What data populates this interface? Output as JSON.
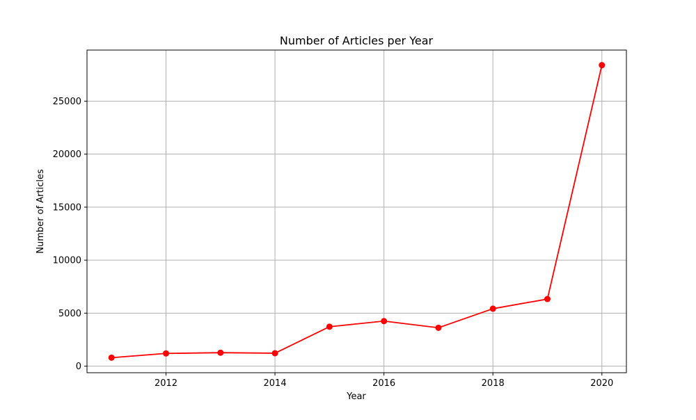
{
  "chart_data": {
    "type": "line",
    "title": "Number of Articles per Year",
    "xlabel": "Year",
    "ylabel": "Number of Articles",
    "x": [
      2011,
      2012,
      2013,
      2014,
      2015,
      2016,
      2017,
      2018,
      2019,
      2020
    ],
    "series": [
      {
        "values": [
          800,
          1200,
          1270,
          1220,
          3720,
          4250,
          3620,
          5420,
          6330,
          28400
        ]
      }
    ],
    "xlim": [
      2010.55,
      2020.45
    ],
    "ylim": [
      -620,
      29820
    ],
    "xticks": [
      2012,
      2014,
      2016,
      2018,
      2020
    ],
    "xtick_labels": [
      "2012",
      "2014",
      "2016",
      "2018",
      "2020"
    ],
    "yticks": [
      0,
      5000,
      10000,
      15000,
      20000,
      25000
    ],
    "ytick_labels": [
      "0",
      "5000",
      "10000",
      "15000",
      "20000",
      "25000"
    ],
    "grid": true,
    "marker": "circle",
    "line_color": "#ff0000",
    "grid_color": "#b0b0b0"
  }
}
